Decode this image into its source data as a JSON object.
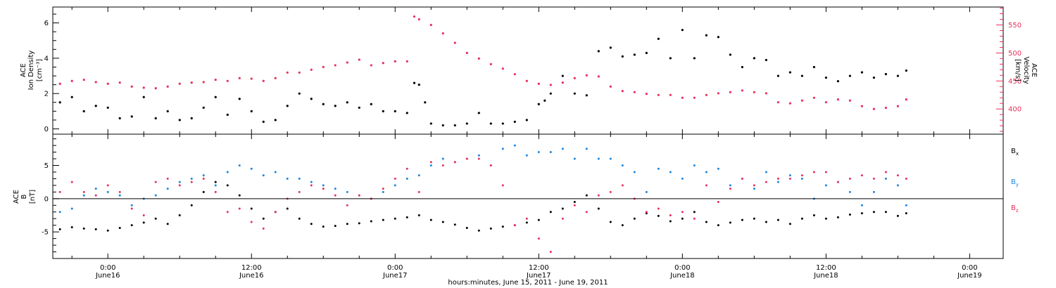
{
  "colors": {
    "black": "#000000",
    "pink": "#e8305a",
    "blue": "#1a85e0",
    "background": "#ffffff"
  },
  "x_axis": {
    "title": "hours:minutes, June 15, 2011 - June 19, 2011",
    "range_hours": [
      -4.6,
      74.8
    ],
    "ticks": [
      {
        "hour": 0,
        "time": "0:00",
        "date": "June16"
      },
      {
        "hour": 12,
        "time": "12:00",
        "date": "June16"
      },
      {
        "hour": 24,
        "time": "0:00",
        "date": "June17"
      },
      {
        "hour": 36,
        "time": "12:00",
        "date": "June17"
      },
      {
        "hour": 48,
        "time": "0:00",
        "date": "June18"
      },
      {
        "hour": 60,
        "time": "12:00",
        "date": "June18"
      },
      {
        "hour": 72,
        "time": "0:00",
        "date": "June19"
      }
    ]
  },
  "chart_data": [
    {
      "type": "scatter",
      "panel": "top",
      "ylabel_left": [
        "ACE",
        "Ion Density"
      ],
      "ylabel_left_unit": "[cm⁻³]",
      "ylim_left": [
        -0.3,
        6.9
      ],
      "yticks_left": [
        "0",
        "2",
        "4",
        "6"
      ],
      "ylabel_right": [
        "ACE",
        "Velocity"
      ],
      "ylabel_right_unit": "[km/s]",
      "ylim_right": [
        355,
        582
      ],
      "yticks_right": [
        "400",
        "450",
        "500",
        "550"
      ],
      "series": [
        {
          "axis": "left",
          "color": "#000000",
          "x": [
            -4,
            -3,
            -2,
            -1,
            0,
            1,
            2,
            3,
            4,
            5,
            6,
            7,
            8,
            9,
            10,
            11,
            12,
            13,
            14,
            15,
            16,
            17,
            18,
            19,
            20,
            21,
            22,
            23,
            24,
            25,
            25.6,
            26,
            26.5,
            27,
            28,
            29,
            30,
            31,
            32,
            33,
            34,
            35,
            36,
            36.5,
            37,
            38,
            39,
            40,
            41,
            42,
            43,
            44,
            45,
            46,
            47,
            48,
            49,
            50,
            51,
            52,
            53,
            54,
            55,
            56,
            57,
            58,
            59,
            60,
            61,
            62,
            63,
            64,
            65,
            66,
            66.7
          ],
          "y": [
            1.5,
            1.8,
            1.0,
            1.3,
            1.2,
            0.6,
            0.7,
            1.8,
            0.6,
            1.0,
            0.5,
            0.6,
            1.2,
            1.8,
            0.8,
            1.7,
            1.0,
            0.4,
            0.5,
            1.3,
            2.0,
            1.7,
            1.4,
            1.3,
            1.5,
            1.2,
            1.4,
            1.0,
            1.0,
            0.9,
            2.6,
            2.5,
            1.5,
            0.3,
            0.2,
            0.2,
            0.3,
            0.9,
            0.3,
            0.3,
            0.4,
            0.5,
            1.4,
            1.6,
            2.0,
            3.0,
            2.0,
            1.9,
            4.4,
            4.6,
            4.1,
            4.2,
            4.3,
            5.1,
            4.0,
            5.6,
            4.0,
            5.3,
            5.2,
            4.2,
            3.5,
            4.0,
            3.9,
            3.0,
            3.2,
            3.0,
            3.5,
            2.9,
            2.7,
            3.0,
            3.2,
            2.9,
            3.1,
            3.0,
            3.3
          ]
        },
        {
          "axis": "right",
          "color": "#e8305a",
          "x": [
            -4,
            -3,
            -2,
            -1,
            0,
            1,
            2,
            3,
            4,
            5,
            6,
            7,
            8,
            9,
            10,
            11,
            12,
            13,
            14,
            15,
            16,
            17,
            18,
            19,
            20,
            21,
            22,
            23,
            24,
            25,
            25.6,
            26,
            27,
            28,
            29,
            30,
            31,
            32,
            33,
            34,
            35,
            36,
            37,
            38,
            39,
            40,
            41,
            42,
            43,
            44,
            45,
            46,
            47,
            48,
            49,
            50,
            51,
            52,
            53,
            54,
            55,
            56,
            57,
            58,
            59,
            60,
            61,
            62,
            63,
            64,
            65,
            66,
            66.7
          ],
          "y": [
            445,
            450,
            452,
            448,
            445,
            447,
            440,
            438,
            437,
            440,
            445,
            447,
            448,
            452,
            450,
            455,
            454,
            450,
            455,
            465,
            465,
            470,
            475,
            478,
            483,
            488,
            478,
            482,
            485,
            485,
            565,
            560,
            550,
            535,
            518,
            500,
            490,
            480,
            472,
            462,
            450,
            445,
            443,
            447,
            455,
            460,
            458,
            440,
            432,
            430,
            427,
            425,
            425,
            420,
            420,
            425,
            428,
            430,
            433,
            430,
            428,
            412,
            410,
            415,
            420,
            412,
            417,
            415,
            405,
            400,
            402,
            405,
            417
          ]
        }
      ]
    },
    {
      "type": "scatter",
      "panel": "bottom",
      "ylabel_left": [
        "ACE",
        "B"
      ],
      "ylabel_left_unit": "[nT]",
      "ylim": [
        -9,
        9.7
      ],
      "yticks": [
        "-5",
        "0",
        "5"
      ],
      "zero_line": true,
      "series": [
        {
          "name": "Bx",
          "label_main": "B",
          "label_sub": "x",
          "color": "#000000",
          "x": [
            -4,
            -3,
            -2,
            -1,
            0,
            1,
            2,
            3,
            4,
            5,
            6,
            7,
            8,
            9,
            10,
            11,
            12,
            13,
            14,
            15,
            16,
            17,
            18,
            19,
            20,
            21,
            22,
            23,
            24,
            25,
            26,
            27,
            28,
            29,
            30,
            31,
            32,
            33,
            34,
            35,
            36,
            37,
            38,
            39,
            40,
            41,
            42,
            43,
            44,
            45,
            46,
            47,
            48,
            49,
            50,
            51,
            52,
            53,
            54,
            55,
            56,
            57,
            58,
            59,
            60,
            61,
            62,
            63,
            64,
            65,
            66,
            66.7
          ],
          "y": [
            -4.6,
            -4.3,
            -4.5,
            -4.6,
            -4.8,
            -4.4,
            -4.0,
            -3.6,
            -3.0,
            -3.8,
            -2.5,
            -1.0,
            1.0,
            2.5,
            2.0,
            0.5,
            -1.5,
            -3.0,
            -2.0,
            -1.5,
            -3.0,
            -3.8,
            -4.2,
            -4.1,
            -3.8,
            -3.7,
            -3.4,
            -3.2,
            -3.0,
            -2.8,
            -2.5,
            -3.2,
            -3.5,
            -3.9,
            -4.4,
            -4.8,
            -4.5,
            -4.2,
            -4.0,
            -3.6,
            -3.2,
            -2.0,
            -1.5,
            -0.5,
            0.5,
            -1.5,
            -3.5,
            -4.0,
            -3.0,
            -2.2,
            -2.6,
            -3.4,
            -3.0,
            -2.0,
            -3.5,
            -4.0,
            -3.6,
            -3.2,
            -3.0,
            -3.5,
            -3.2,
            -3.8,
            -3.0,
            -2.5,
            -3.0,
            -2.8,
            -2.4,
            -2.2,
            -2.0,
            -2.0,
            -2.6,
            -2.2
          ]
        },
        {
          "name": "By",
          "label_main": "B",
          "label_sub": "y",
          "color": "#1a85e0",
          "x": [
            -4,
            -3,
            -2,
            -1,
            0,
            1,
            2,
            3,
            4,
            5,
            6,
            7,
            8,
            9,
            10,
            11,
            12,
            13,
            14,
            15,
            16,
            17,
            18,
            19,
            20,
            21,
            22,
            23,
            24,
            25,
            26,
            27,
            28,
            29,
            30,
            31,
            32,
            33,
            34,
            35,
            36,
            37,
            38,
            39,
            40,
            41,
            42,
            43,
            44,
            45,
            46,
            47,
            48,
            49,
            50,
            51,
            52,
            53,
            54,
            55,
            56,
            57,
            58,
            59,
            60,
            61,
            62,
            63,
            64,
            65,
            66,
            66.7
          ],
          "y": [
            -2.0,
            -1.5,
            0.5,
            1.5,
            1.0,
            0.5,
            -1.0,
            0.0,
            0.5,
            1.5,
            2.5,
            3.0,
            3.5,
            2.0,
            4.0,
            5.0,
            4.5,
            3.5,
            4.0,
            3.0,
            3.0,
            2.5,
            2.0,
            1.5,
            1.0,
            0.5,
            0.0,
            1.0,
            2.0,
            3.0,
            3.5,
            5.0,
            6.0,
            5.5,
            6.0,
            6.5,
            5.0,
            7.5,
            8.0,
            6.5,
            7.0,
            7.0,
            7.5,
            6.0,
            7.5,
            6.0,
            6.0,
            5.0,
            4.0,
            1.0,
            4.5,
            4.0,
            3.0,
            5.0,
            4.0,
            4.5,
            2.0,
            3.0,
            1.5,
            4.0,
            2.5,
            3.5,
            3.0,
            0.0,
            2.0,
            2.5,
            1.0,
            -1.0,
            1.0,
            3.0,
            2.0,
            -1.0
          ]
        },
        {
          "name": "Bz",
          "label_main": "B",
          "label_sub": "z",
          "color": "#e8305a",
          "x": [
            -4,
            -3,
            -2,
            -1,
            0,
            1,
            2,
            3,
            4,
            5,
            6,
            7,
            8,
            9,
            10,
            11,
            12,
            13,
            14,
            15,
            16,
            17,
            18,
            19,
            20,
            21,
            22,
            23,
            24,
            25,
            26,
            27,
            28,
            29,
            30,
            31,
            32,
            33,
            34,
            35,
            36,
            37,
            38,
            39,
            40,
            41,
            42,
            43,
            44,
            45,
            46,
            47,
            48,
            49,
            50,
            51,
            52,
            53,
            54,
            55,
            56,
            57,
            58,
            59,
            60,
            61,
            62,
            63,
            64,
            65,
            66,
            66.7
          ],
          "y": [
            1.0,
            2.5,
            1.0,
            0.5,
            2.0,
            1.0,
            -1.5,
            -2.5,
            2.5,
            3.0,
            2.0,
            2.5,
            3.0,
            1.0,
            -2.0,
            -1.5,
            -3.5,
            -4.5,
            -2.0,
            0.0,
            1.0,
            2.0,
            1.5,
            0.5,
            -1.0,
            0.5,
            0.0,
            1.5,
            3.0,
            4.5,
            1.0,
            5.5,
            5.0,
            5.5,
            6.0,
            6.0,
            5.0,
            2.0,
            -4.0,
            -3.0,
            -6.0,
            -8.0,
            -3.0,
            -1.0,
            -2.0,
            0.5,
            1.0,
            2.0,
            0.0,
            -2.0,
            -1.5,
            -2.5,
            -2.0,
            -3.0,
            2.0,
            -0.5,
            1.5,
            3.0,
            2.0,
            2.5,
            3.0,
            3.0,
            3.5,
            4.0,
            4.0,
            2.5,
            3.0,
            3.5,
            3.0,
            4.0,
            3.5,
            3.0
          ]
        }
      ]
    }
  ]
}
